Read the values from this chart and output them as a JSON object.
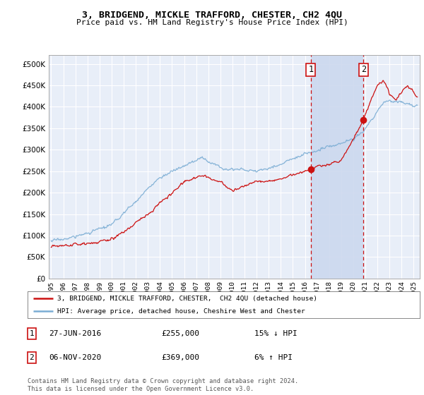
{
  "title": "3, BRIDGEND, MICKLE TRAFFORD, CHESTER, CH2 4QU",
  "subtitle": "Price paid vs. HM Land Registry's House Price Index (HPI)",
  "yticks": [
    0,
    50000,
    100000,
    150000,
    200000,
    250000,
    300000,
    350000,
    400000,
    450000,
    500000
  ],
  "ylim": [
    0,
    520000
  ],
  "xlim_start": 1994.8,
  "xlim_end": 2025.5,
  "background_color": "#ffffff",
  "plot_bg_color": "#e8eef8",
  "grid_color": "#ffffff",
  "hpi_color": "#7badd4",
  "price_color": "#cc1111",
  "shade_color": "#ccd8ee",
  "marker1_x": 2016.49,
  "marker1_y": 255000,
  "marker2_x": 2020.84,
  "marker2_y": 369000,
  "legend_line1": "3, BRIDGEND, MICKLE TRAFFORD, CHESTER,  CH2 4QU (detached house)",
  "legend_line2": "HPI: Average price, detached house, Cheshire West and Chester",
  "footer": "Contains HM Land Registry data © Crown copyright and database right 2024.\nThis data is licensed under the Open Government Licence v3.0."
}
